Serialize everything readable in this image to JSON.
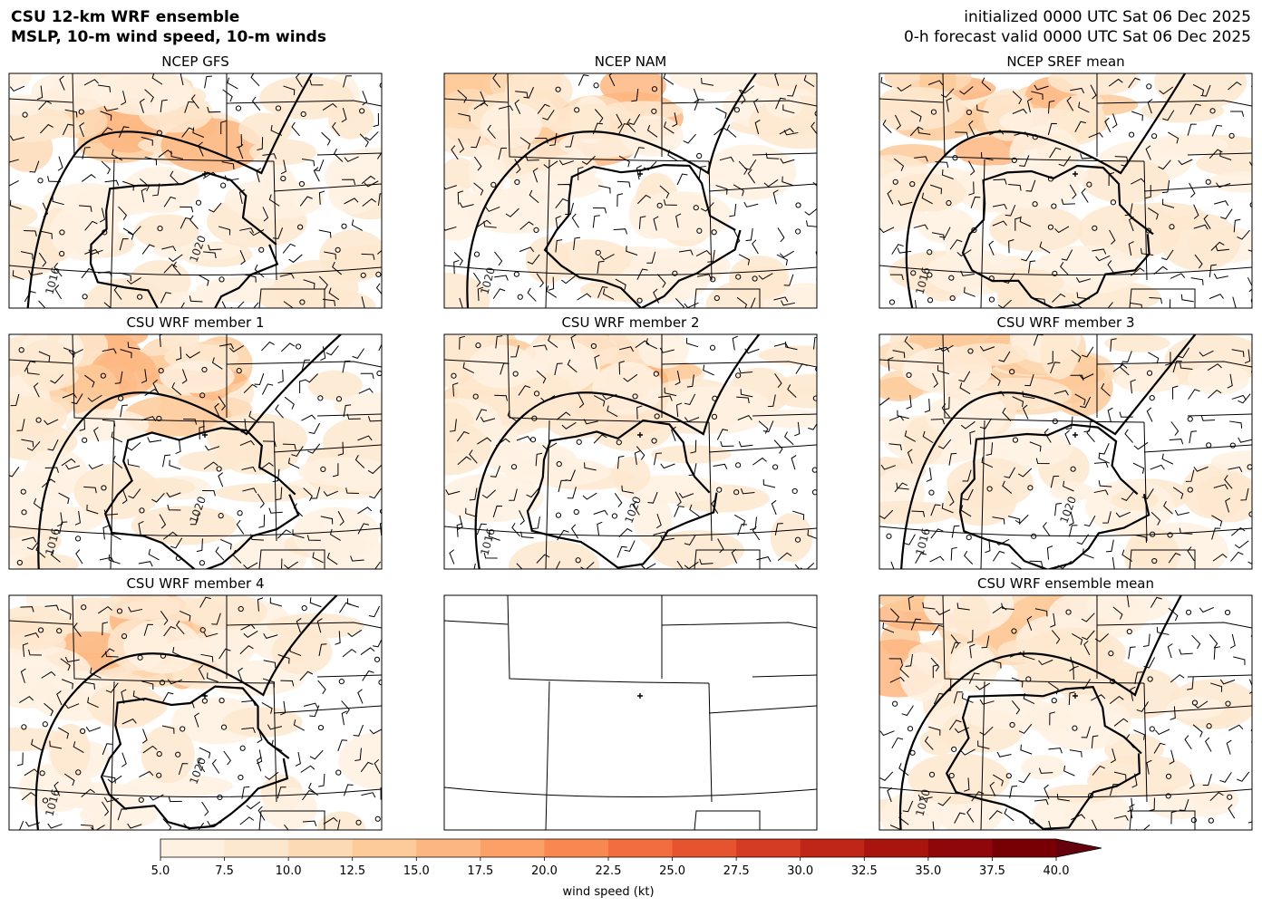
{
  "header": {
    "title_lines": [
      "CSU 12-km WRF ensemble",
      "MSLP, 10-m wind speed, 10-m winds"
    ],
    "init": "initialized 0000 UTC Sat 06 Dec 2025",
    "valid": "0-h forecast valid 0000 UTC Sat 06 Dec 2025"
  },
  "panels": [
    {
      "title": "NCEP GFS",
      "contour_labels": [
        "1016",
        "1020"
      ]
    },
    {
      "title": "NCEP NAM",
      "contour_labels": [
        "1020"
      ]
    },
    {
      "title": "NCEP SREF mean",
      "contour_labels": [
        "1016"
      ]
    },
    {
      "title": "CSU WRF member 1",
      "contour_labels": [
        "1016",
        "1020"
      ]
    },
    {
      "title": "CSU WRF member 2",
      "contour_labels": [
        "1016",
        "1020"
      ]
    },
    {
      "title": "CSU WRF member 3",
      "contour_labels": [
        "1016",
        "1020"
      ]
    },
    {
      "title": "CSU WRF member 4",
      "contour_labels": [
        "1016",
        "1020"
      ]
    },
    {
      "title": "CSU WRF ensemble mean",
      "contour_labels": [
        "1020"
      ]
    }
  ],
  "colorbar": {
    "label": "wind speed (kt)",
    "extend": "max",
    "ticks": [
      {
        "value": 5,
        "label": "5.0"
      },
      {
        "value": 7.5,
        "label": "7.5"
      },
      {
        "value": 10,
        "label": "10.0"
      },
      {
        "value": 12.5,
        "label": "12.5"
      },
      {
        "value": 15,
        "label": "15.0"
      },
      {
        "value": 17.5,
        "label": "17.5"
      },
      {
        "value": 20,
        "label": "20.0"
      },
      {
        "value": 22.5,
        "label": "22.5"
      },
      {
        "value": 25,
        "label": "25.0"
      },
      {
        "value": 27.5,
        "label": "27.5"
      },
      {
        "value": 30,
        "label": "30.0"
      },
      {
        "value": 32.5,
        "label": "32.5"
      },
      {
        "value": 35,
        "label": "35.0"
      },
      {
        "value": 37.5,
        "label": "37.5"
      },
      {
        "value": 40,
        "label": "40.0"
      }
    ],
    "colors": [
      "#fff1e2",
      "#fee7cf",
      "#fddab6",
      "#fdca9a",
      "#fdb680",
      "#fca068",
      "#f98752",
      "#f26d3f",
      "#e5542f",
      "#d43d22",
      "#c02617",
      "#a9140f",
      "#8f0708",
      "#780004"
    ],
    "over_color": "#67000d"
  }
}
